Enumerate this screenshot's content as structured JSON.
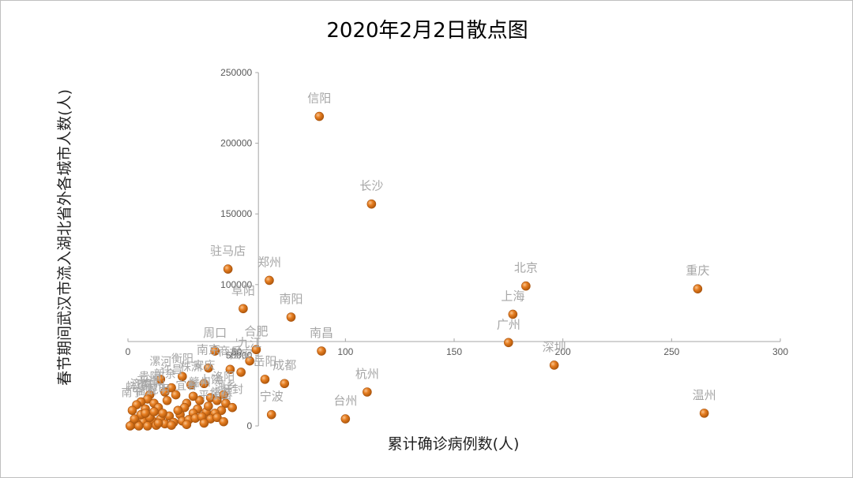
{
  "chart_data": {
    "type": "scatter",
    "title": "2020年2月2日散点图",
    "xlabel": "累计确诊病例数(人)",
    "ylabel": "春节期间武汉市流入湖北省外各城市人数(人)",
    "xlim": [
      0,
      300
    ],
    "ylim": [
      0,
      250000
    ],
    "x_ticks": [
      "0",
      "50",
      "100",
      "150",
      "200",
      "250",
      "300"
    ],
    "y_ticks": [
      "0",
      "50000",
      "100000",
      "150000",
      "200000",
      "250000"
    ],
    "point_color": "#e67e22",
    "label_color": "#a6a6a6",
    "points": [
      {
        "label": "信阳",
        "x": 88,
        "y": 219000
      },
      {
        "label": "长沙",
        "x": 112,
        "y": 157000
      },
      {
        "label": "驻马店",
        "x": 46,
        "y": 111000
      },
      {
        "label": "郑州",
        "x": 65,
        "y": 103000
      },
      {
        "label": "北京",
        "x": 183,
        "y": 99000
      },
      {
        "label": "重庆",
        "x": 262,
        "y": 97000
      },
      {
        "label": "阜阳",
        "x": 53,
        "y": 83000
      },
      {
        "label": "南阳",
        "x": 75,
        "y": 77000
      },
      {
        "label": "上海",
        "x": 177,
        "y": 79000
      },
      {
        "label": "广州",
        "x": 175,
        "y": 59000
      },
      {
        "label": "周口",
        "x": 40,
        "y": 53000
      },
      {
        "label": "合肥",
        "x": 59,
        "y": 54000
      },
      {
        "label": "南昌",
        "x": 89,
        "y": 53000
      },
      {
        "label": "九江",
        "x": 56,
        "y": 46000
      },
      {
        "label": "深圳",
        "x": 196,
        "y": 43000
      },
      {
        "label": "南京",
        "x": 37,
        "y": 41000
      },
      {
        "label": "商丘",
        "x": 47,
        "y": 40000
      },
      {
        "label": "西安",
        "x": 52,
        "y": 38000
      },
      {
        "label": "岳阳",
        "x": 63,
        "y": 33000
      },
      {
        "label": "成都",
        "x": 72,
        "y": 30000
      },
      {
        "label": "杭州",
        "x": 110,
        "y": 24000
      },
      {
        "label": "宁波",
        "x": 66,
        "y": 8000
      },
      {
        "label": "台州",
        "x": 100,
        "y": 5000
      },
      {
        "label": "温州",
        "x": 265,
        "y": 9000
      },
      {
        "label": "漯河",
        "x": 15,
        "y": 33000
      },
      {
        "label": "衡阳",
        "x": 25,
        "y": 35000
      },
      {
        "label": "安庆",
        "x": 35,
        "y": 30000
      },
      {
        "label": "株洲",
        "x": 29,
        "y": 29000
      },
      {
        "label": "许昌",
        "x": 20,
        "y": 27000
      },
      {
        "label": "新余",
        "x": 17,
        "y": 24000
      },
      {
        "label": "贵阳",
        "x": 10,
        "y": 22000
      },
      {
        "label": "天津",
        "x": 9,
        "y": 19000
      },
      {
        "label": "济南",
        "x": 6,
        "y": 17000
      },
      {
        "label": "苏州",
        "x": 12,
        "y": 16000
      },
      {
        "label": "蚌埠",
        "x": 4,
        "y": 15000
      },
      {
        "label": "昆明",
        "x": 14,
        "y": 13000
      },
      {
        "label": "福州",
        "x": 8,
        "y": 12000
      },
      {
        "label": "南宁",
        "x": 2,
        "y": 11000
      },
      {
        "label": "洛阳",
        "x": 44,
        "y": 22000
      },
      {
        "label": "上饶",
        "x": 38,
        "y": 20000
      },
      {
        "label": "赣州",
        "x": 33,
        "y": 18000
      },
      {
        "label": "宜春",
        "x": 27,
        "y": 16000
      },
      {
        "label": "萍乡",
        "x": 45,
        "y": 16000
      },
      {
        "label": "开封",
        "x": 48,
        "y": 13000
      },
      {
        "label": "常德",
        "x": 43,
        "y": 11000
      },
      {
        "label": "平顶山",
        "x": 40,
        "y": 9000
      },
      {
        "label": "",
        "x": 22,
        "y": 22000
      },
      {
        "label": "",
        "x": 30,
        "y": 21000
      },
      {
        "label": "",
        "x": 18,
        "y": 18000
      },
      {
        "label": "",
        "x": 26,
        "y": 13000
      },
      {
        "label": "",
        "x": 32,
        "y": 12000
      },
      {
        "label": "",
        "x": 36,
        "y": 10000
      },
      {
        "label": "",
        "x": 30,
        "y": 9000
      },
      {
        "label": "",
        "x": 24,
        "y": 8000
      },
      {
        "label": "",
        "x": 19,
        "y": 7000
      },
      {
        "label": "",
        "x": 15,
        "y": 5000
      },
      {
        "label": "",
        "x": 11,
        "y": 4000
      },
      {
        "label": "",
        "x": 7,
        "y": 3000
      },
      {
        "label": "",
        "x": 4,
        "y": 2000
      },
      {
        "label": "",
        "x": 2,
        "y": 1000
      },
      {
        "label": "",
        "x": 1,
        "y": 0
      },
      {
        "label": "",
        "x": 5,
        "y": 0
      },
      {
        "label": "",
        "x": 9,
        "y": 0
      },
      {
        "label": "",
        "x": 13,
        "y": 500
      },
      {
        "label": "",
        "x": 17,
        "y": 1500
      },
      {
        "label": "",
        "x": 21,
        "y": 2500
      },
      {
        "label": "",
        "x": 25,
        "y": 3500
      },
      {
        "label": "",
        "x": 28,
        "y": 4500
      },
      {
        "label": "",
        "x": 31,
        "y": 5500
      },
      {
        "label": "",
        "x": 34,
        "y": 6500
      },
      {
        "label": "",
        "x": 38,
        "y": 5000
      },
      {
        "label": "",
        "x": 41,
        "y": 6000
      },
      {
        "label": "",
        "x": 44,
        "y": 3000
      },
      {
        "label": "",
        "x": 35,
        "y": 2000
      },
      {
        "label": "",
        "x": 27,
        "y": 1000
      },
      {
        "label": "",
        "x": 20,
        "y": 500
      },
      {
        "label": "",
        "x": 14,
        "y": 2000
      },
      {
        "label": "",
        "x": 10,
        "y": 6000
      },
      {
        "label": "",
        "x": 6,
        "y": 8000
      },
      {
        "label": "",
        "x": 3,
        "y": 5000
      },
      {
        "label": "",
        "x": 16,
        "y": 9000
      },
      {
        "label": "",
        "x": 23,
        "y": 11000
      },
      {
        "label": "",
        "x": 37,
        "y": 14000
      },
      {
        "label": "",
        "x": 41,
        "y": 18000
      },
      {
        "label": "",
        "x": 12,
        "y": 10000
      },
      {
        "label": "",
        "x": 8,
        "y": 9000
      }
    ]
  }
}
